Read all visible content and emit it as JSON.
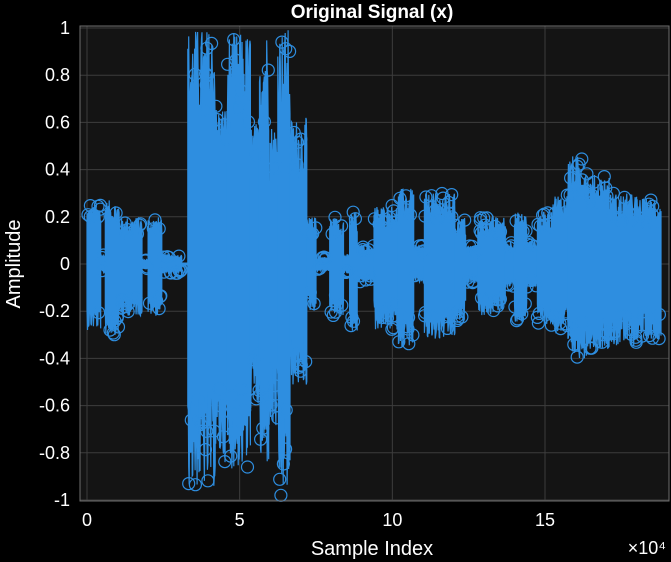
{
  "chart_data": {
    "type": "scatter",
    "title": "Original Signal (x)",
    "xlabel": "Sample Index",
    "ylabel": "Amplitude",
    "x_exponent_label": "×10⁴",
    "xlim": [
      0,
      18.8
    ],
    "ylim": [
      -1,
      1
    ],
    "x_scale_note": "x values in units of 10^4 samples",
    "xticks": [
      0,
      5,
      10,
      15
    ],
    "xtick_labels": [
      "0",
      "5",
      "10",
      "15"
    ],
    "yticks": [
      -1,
      -0.8,
      -0.6,
      -0.4,
      -0.2,
      0,
      0.2,
      0.4,
      0.6,
      0.8,
      1
    ],
    "ytick_labels": [
      "-1",
      "-0.8",
      "-0.6",
      "-0.4",
      "-0.2",
      "0",
      "0.2",
      "0.4",
      "0.6",
      "0.8",
      "1"
    ],
    "grid": true,
    "marker": "circle",
    "stem": true,
    "colors": {
      "series": "#2e8ee0",
      "background": "#000000",
      "axes_bg": "#141414",
      "grid": "#3d3d3d",
      "text": "#ffffff"
    },
    "segments": [
      {
        "x_start": 0.0,
        "x_end": 0.9,
        "peak_pos": 0.25,
        "peak_neg": -0.28
      },
      {
        "x_start": 0.9,
        "x_end": 1.2,
        "peak_pos": 0.04,
        "peak_neg": -0.04
      },
      {
        "x_start": 1.2,
        "x_end": 2.1,
        "peak_pos": 0.27,
        "peak_neg": -0.3
      },
      {
        "x_start": 2.1,
        "x_end": 3.6,
        "peak_pos": 0.2,
        "peak_neg": -0.22
      },
      {
        "x_start": 3.6,
        "x_end": 4.0,
        "peak_pos": 0.02,
        "peak_neg": -0.02
      },
      {
        "x_start": 4.0,
        "x_end": 4.9,
        "peak_pos": 0.2,
        "peak_neg": -0.22
      },
      {
        "x_start": 4.9,
        "x_end": 6.2,
        "peak_pos": 0.04,
        "peak_neg": -0.04
      },
      {
        "x_start": 6.6,
        "x_end": 8.4,
        "peak_pos": 1.0,
        "peak_neg": -0.95
      },
      {
        "x_start": 8.4,
        "x_end": 9.2,
        "peak_pos": 0.68,
        "peak_neg": -0.84
      },
      {
        "x_start": 9.2,
        "x_end": 10.7,
        "peak_pos": 0.98,
        "peak_neg": -0.87
      },
      {
        "x_start": 10.7,
        "x_end": 11.3,
        "peak_pos": 0.6,
        "peak_neg": -0.62
      },
      {
        "x_start": 11.3,
        "x_end": 11.9,
        "peak_pos": 1.0,
        "peak_neg": -0.86
      },
      {
        "x_start": 11.9,
        "x_end": 12.5,
        "peak_pos": 0.6,
        "peak_neg": -0.72
      },
      {
        "x_start": 12.5,
        "x_end": 13.3,
        "peak_pos": 1.0,
        "peak_neg": -0.98
      },
      {
        "x_start": 13.3,
        "x_end": 14.4,
        "peak_pos": 0.62,
        "peak_neg": -0.52
      },
      {
        "x_start": 14.4,
        "x_end": 15.0,
        "peak_pos": 0.2,
        "peak_neg": -0.2
      },
      {
        "x_start": 15.0,
        "x_end": 15.9,
        "peak_pos": 0.03,
        "peak_neg": -0.03
      },
      {
        "x_start": 15.9,
        "x_end": 16.8,
        "peak_pos": 0.2,
        "peak_neg": -0.22
      },
      {
        "x_start": 16.8,
        "x_end": 17.2,
        "peak_pos": 0.04,
        "peak_neg": -0.04
      },
      {
        "x_start": 17.2,
        "x_end": 17.7,
        "peak_pos": 0.22,
        "peak_neg": -0.3
      },
      {
        "x_start": 17.7,
        "x_end": 18.8,
        "peak_pos": 0.08,
        "peak_neg": -0.08
      },
      {
        "x_start": 18.8,
        "x_end": 20.4,
        "peak_pos": 0.25,
        "peak_neg": -0.28
      },
      {
        "x_start": 20.4,
        "x_end": 21.4,
        "peak_pos": 0.32,
        "peak_neg": -0.35
      },
      {
        "x_start": 21.4,
        "x_end": 22.1,
        "peak_pos": 0.08,
        "peak_neg": -0.08
      },
      {
        "x_start": 22.1,
        "x_end": 23.1,
        "peak_pos": 0.3,
        "peak_neg": -0.33
      },
      {
        "x_start": 23.1,
        "x_end": 24.1,
        "peak_pos": 0.3,
        "peak_neg": -0.32
      },
      {
        "x_start": 24.1,
        "x_end": 24.8,
        "peak_pos": 0.2,
        "peak_neg": -0.25
      },
      {
        "x_start": 24.8,
        "x_end": 25.6,
        "peak_pos": 0.08,
        "peak_neg": -0.08
      },
      {
        "x_start": 25.6,
        "x_end": 26.6,
        "peak_pos": 0.2,
        "peak_neg": -0.22
      },
      {
        "x_start": 26.6,
        "x_end": 27.4,
        "peak_pos": 0.2,
        "peak_neg": -0.2
      },
      {
        "x_start": 27.4,
        "x_end": 28.0,
        "peak_pos": 0.1,
        "peak_neg": -0.1
      },
      {
        "x_start": 28.0,
        "x_end": 28.8,
        "peak_pos": 0.22,
        "peak_neg": -0.25
      },
      {
        "x_start": 28.8,
        "x_end": 29.5,
        "peak_pos": 0.1,
        "peak_neg": -0.1
      },
      {
        "x_start": 29.5,
        "x_end": 30.5,
        "peak_pos": 0.22,
        "peak_neg": -0.26
      },
      {
        "x_start": 30.5,
        "x_end": 31.5,
        "peak_pos": 0.3,
        "peak_neg": -0.3
      },
      {
        "x_start": 31.5,
        "x_end": 32.8,
        "peak_pos": 0.46,
        "peak_neg": -0.4
      },
      {
        "x_start": 32.8,
        "x_end": 34.2,
        "peak_pos": 0.38,
        "peak_neg": -0.36
      },
      {
        "x_start": 34.2,
        "x_end": 36.0,
        "peak_pos": 0.3,
        "peak_neg": -0.35
      },
      {
        "x_start": 36.0,
        "x_end": 37.6,
        "peak_pos": 0.28,
        "peak_neg": -0.32
      }
    ]
  }
}
